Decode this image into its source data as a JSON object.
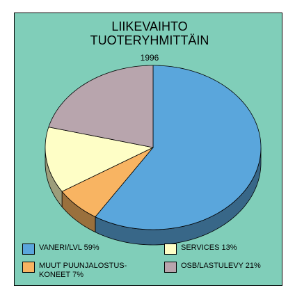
{
  "chart_data": {
    "type": "pie",
    "title": "LIIKEVAIHTO TUOTERYHMITTÄIN",
    "subtitle": "1996",
    "categories": [
      "VANERI/LVL",
      "MUUT PUUNJALOSTUS-KONEET",
      "SERVICES",
      "OSB/LASTULEVY"
    ],
    "values": [
      59,
      7,
      13,
      21
    ],
    "value_labels": [
      "59%",
      "7%",
      "13%",
      "21%"
    ],
    "colors": [
      "#5aa6dc",
      "#f8b462",
      "#fefec6",
      "#b8a5ad"
    ],
    "three_d": true
  }
}
